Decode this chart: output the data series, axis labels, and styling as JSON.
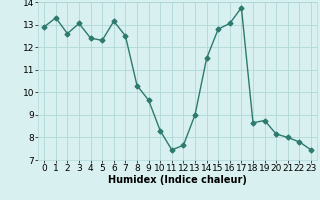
{
  "x": [
    0,
    1,
    2,
    3,
    4,
    5,
    6,
    7,
    8,
    9,
    10,
    11,
    12,
    13,
    14,
    15,
    16,
    17,
    18,
    19,
    20,
    21,
    22,
    23
  ],
  "y": [
    12.9,
    13.3,
    12.6,
    13.05,
    12.4,
    12.3,
    13.15,
    12.5,
    10.3,
    9.65,
    8.3,
    7.45,
    7.65,
    9.0,
    11.5,
    12.8,
    13.05,
    13.75,
    8.65,
    8.75,
    8.15,
    8.0,
    7.8,
    7.45
  ],
  "line_color": "#2d7a6e",
  "marker": "D",
  "marker_size": 2.5,
  "linewidth": 1.0,
  "bg_color": "#d9f0f0",
  "grid_color": "#b0d8d8",
  "xlabel": "Humidex (Indice chaleur)",
  "ylim": [
    7,
    14
  ],
  "xlim": [
    -0.5,
    23.5
  ],
  "yticks": [
    7,
    8,
    9,
    10,
    11,
    12,
    13,
    14
  ],
  "xticks": [
    0,
    1,
    2,
    3,
    4,
    5,
    6,
    7,
    8,
    9,
    10,
    11,
    12,
    13,
    14,
    15,
    16,
    17,
    18,
    19,
    20,
    21,
    22,
    23
  ],
  "xlabel_fontsize": 7,
  "tick_fontsize": 6.5
}
